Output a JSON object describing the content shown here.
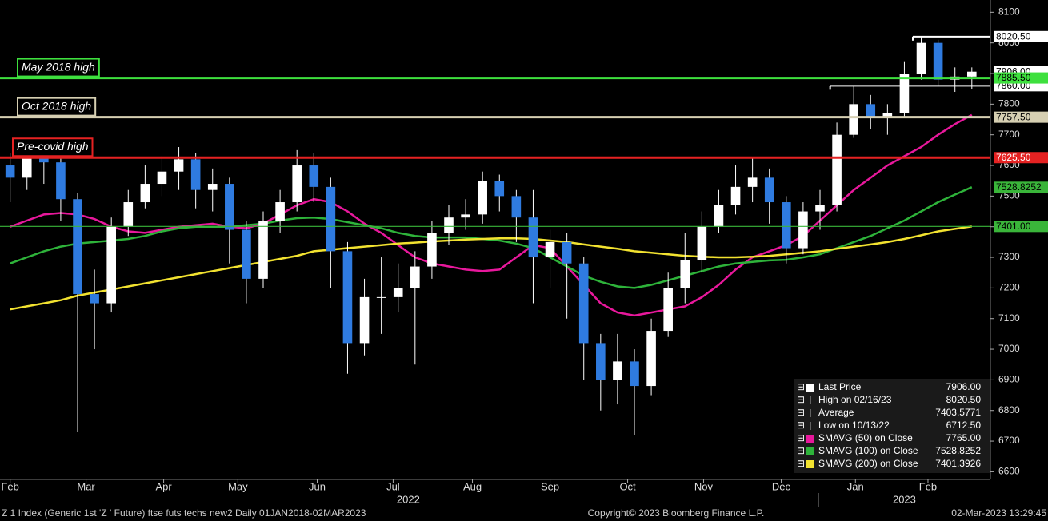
{
  "chart_data": {
    "type": "candlestick",
    "xlim": [
      -0.6,
      58.1
    ],
    "ylim": [
      6575,
      8140
    ],
    "yticks": [
      6600,
      6700,
      6800,
      6900,
      7000,
      7100,
      7200,
      7300,
      7400,
      7500,
      7600,
      7700,
      7800,
      7900,
      8000,
      8100
    ],
    "xticks": [
      {
        "value": 0,
        "label": "Feb"
      },
      {
        "value": 4.5,
        "label": "Mar"
      },
      {
        "value": 9.1,
        "label": "Apr"
      },
      {
        "value": 13.5,
        "label": "May"
      },
      {
        "value": 18.2,
        "label": "Jun"
      },
      {
        "value": 22.7,
        "label": "Jul"
      },
      {
        "value": 27.4,
        "label": "Aug"
      },
      {
        "value": 32.0,
        "label": "Sep"
      },
      {
        "value": 36.6,
        "label": "Oct"
      },
      {
        "value": 41.1,
        "label": "Nov"
      },
      {
        "value": 45.7,
        "label": "Dec"
      },
      {
        "value": 50.1,
        "label": "Jan"
      },
      {
        "value": 54.4,
        "label": "Feb"
      }
    ],
    "years": [
      {
        "value": 23.6,
        "label": "2022"
      },
      {
        "value": 53.0,
        "label": "2023"
      }
    ],
    "up_color": "#ffffff",
    "down_color": "#2f7be0",
    "candles": {
      "open": [
        7600,
        7560,
        7660,
        7610,
        7490,
        7180,
        7150,
        7400,
        7480,
        7540,
        7580,
        7620,
        7520,
        7540,
        7390,
        7230,
        7420,
        7480,
        7600,
        7530,
        7320,
        7020,
        7170,
        7170,
        7200,
        7270,
        7380,
        7430,
        7440,
        7550,
        7500,
        7430,
        7300,
        7350,
        7280,
        7020,
        6900,
        6960,
        6880,
        7060,
        7200,
        7290,
        7400,
        7470,
        7530,
        7560,
        7480,
        7330,
        7450,
        7470,
        7700,
        7800,
        7760,
        7770,
        7900,
        8000,
        7880,
        7890
      ],
      "high": [
        7640,
        7690,
        7690,
        7640,
        7510,
        7260,
        7430,
        7520,
        7600,
        7630,
        7660,
        7640,
        7590,
        7560,
        7420,
        7450,
        7520,
        7650,
        7640,
        7560,
        7350,
        7230,
        7300,
        7280,
        7320,
        7420,
        7470,
        7490,
        7580,
        7570,
        7520,
        7520,
        7390,
        7380,
        7300,
        7050,
        7050,
        7000,
        7100,
        7250,
        7380,
        7450,
        7520,
        7600,
        7625,
        7590,
        7500,
        7480,
        7520,
        7740,
        7860,
        7830,
        7800,
        7940,
        8020,
        8010,
        7920,
        7920
      ],
      "low": [
        7480,
        7520,
        7540,
        7420,
        6730,
        7000,
        7120,
        7370,
        7460,
        7500,
        7520,
        7460,
        7450,
        7280,
        7150,
        7200,
        7380,
        7450,
        7480,
        7200,
        6920,
        6980,
        7050,
        7120,
        6950,
        7230,
        7340,
        7390,
        7410,
        7450,
        7350,
        7150,
        7200,
        7100,
        6900,
        6800,
        6820,
        6720,
        6850,
        7040,
        7150,
        7250,
        7380,
        7440,
        7480,
        7410,
        7280,
        7310,
        7390,
        7450,
        7690,
        7720,
        7700,
        7760,
        7880,
        7860,
        7840,
        7850
      ],
      "close": [
        7560,
        7660,
        7610,
        7490,
        7180,
        7150,
        7400,
        7480,
        7540,
        7580,
        7620,
        7520,
        7540,
        7390,
        7230,
        7420,
        7480,
        7600,
        7530,
        7320,
        7020,
        7170,
        7170,
        7200,
        7270,
        7380,
        7430,
        7440,
        7550,
        7500,
        7430,
        7300,
        7350,
        7280,
        7020,
        6900,
        6960,
        6880,
        7060,
        7200,
        7290,
        7400,
        7470,
        7530,
        7560,
        7480,
        7330,
        7450,
        7470,
        7700,
        7800,
        7760,
        7770,
        7900,
        8000,
        7880,
        7890,
        7906
      ]
    },
    "series": [
      {
        "color": "#e8189c",
        "values": [
          7400,
          7420,
          7440,
          7445,
          7440,
          7425,
          7400,
          7385,
          7380,
          7390,
          7400,
          7405,
          7410,
          7400,
          7395,
          7410,
          7440,
          7470,
          7490,
          7480,
          7450,
          7410,
          7380,
          7340,
          7300,
          7280,
          7270,
          7260,
          7255,
          7260,
          7300,
          7340,
          7330,
          7270,
          7210,
          7150,
          7120,
          7110,
          7120,
          7130,
          7140,
          7170,
          7210,
          7260,
          7300,
          7320,
          7340,
          7370,
          7420,
          7470,
          7520,
          7560,
          7600,
          7630,
          7660,
          7700,
          7735,
          7765
        ]
      },
      {
        "color": "#2eb33a",
        "values": [
          7280,
          7300,
          7320,
          7335,
          7345,
          7350,
          7355,
          7360,
          7370,
          7385,
          7395,
          7400,
          7400,
          7400,
          7405,
          7410,
          7420,
          7428,
          7430,
          7425,
          7415,
          7405,
          7395,
          7380,
          7370,
          7365,
          7365,
          7365,
          7360,
          7355,
          7345,
          7330,
          7300,
          7270,
          7240,
          7220,
          7205,
          7200,
          7210,
          7225,
          7240,
          7255,
          7270,
          7280,
          7285,
          7290,
          7292,
          7300,
          7310,
          7330,
          7350,
          7370,
          7395,
          7420,
          7450,
          7480,
          7505,
          7529
        ]
      },
      {
        "color": "#f2e230",
        "values": [
          7130,
          7140,
          7150,
          7160,
          7175,
          7185,
          7195,
          7205,
          7215,
          7225,
          7235,
          7245,
          7255,
          7265,
          7275,
          7285,
          7295,
          7305,
          7320,
          7325,
          7330,
          7335,
          7340,
          7345,
          7348,
          7352,
          7355,
          7358,
          7360,
          7362,
          7362,
          7360,
          7355,
          7350,
          7342,
          7335,
          7328,
          7320,
          7315,
          7310,
          7305,
          7302,
          7300,
          7300,
          7302,
          7305,
          7310,
          7315,
          7320,
          7328,
          7335,
          7342,
          7350,
          7360,
          7372,
          7385,
          7393,
          7401
        ]
      }
    ],
    "levels": [
      {
        "name": "May 2018 high",
        "value": 7885.5,
        "label": "7885.50",
        "color": "#3ee03e"
      },
      {
        "name": "Oct 2018 high",
        "value": 7757.5,
        "label": "7757.50",
        "color": "#d6cfb2"
      },
      {
        "name": "Pre-covid high",
        "value": 7625.5,
        "label": "7625.50",
        "color": "#e52222"
      },
      {
        "value": 7401,
        "label": "7401.00",
        "color": "#3ab53a"
      }
    ],
    "marker_lines": [
      {
        "value": 8020.5,
        "from": 53.5,
        "label": "8020.50",
        "color": "#ffffff"
      },
      {
        "value": 7860,
        "from": 48.6,
        "label": "7860.00",
        "color": "#ffffff"
      }
    ],
    "price_labels": [
      {
        "value": 7906,
        "label": "7906.00",
        "color": "#ffffff"
      },
      {
        "value": 7528.8252,
        "label": "7528.8252",
        "color": "#3ab53a"
      }
    ],
    "legend": [
      {
        "name": "Last Price",
        "value": "7906.00",
        "color": "#ffffff"
      },
      {
        "name": "High on 02/16/23",
        "value": "8020.50"
      },
      {
        "name": "Average",
        "value": "7403.5771"
      },
      {
        "name": "Low on 10/13/22",
        "value": "6712.50"
      },
      {
        "name": "SMAVG (50)  on Close",
        "value": "7765.00",
        "color": "#e8189c"
      },
      {
        "name": "SMAVG (100)  on Close",
        "value": "7528.8252",
        "color": "#2eb33a"
      },
      {
        "name": "SMAVG (200)  on Close",
        "value": "7401.3926",
        "color": "#f2e230"
      }
    ],
    "footer": {
      "source": "Z 1 Index (Generic 1st 'Z ' Future) ftse futs techs new2  Daily 01JAN2018-02MAR2023",
      "copyright": "Copyright© 2023 Bloomberg Finance L.P.",
      "timestamp": "02-Mar-2023 13:29:45"
    }
  }
}
